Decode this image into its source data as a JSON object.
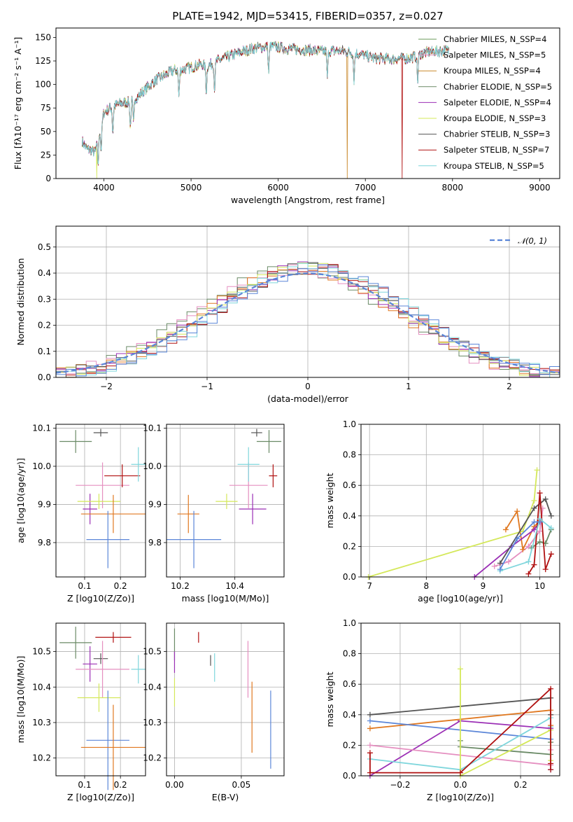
{
  "title": "PLATE=1942, MJD=53415, FIBERID=0357, z=0.027",
  "colors": [
    "#6a9a5a",
    "#e58fc0",
    "#c9882a",
    "#6a8a66",
    "#9b2fb5",
    "#d4e85a",
    "#555555",
    "#b01010",
    "#7fd6dc"
  ],
  "chart_data": [
    {
      "type": "line",
      "id": "spectrum",
      "xlabel": "wavelength [Angstrom, rest frame]",
      "ylabel": "Flux [fλ10⁻¹⁷ erg cm⁻² s⁻¹ A⁻¹]",
      "xlim": [
        3450,
        9230
      ],
      "ylim": [
        0,
        160
      ],
      "xticks": [
        4000,
        5000,
        6000,
        7000,
        8000,
        9000
      ],
      "yticks": [
        0,
        25,
        50,
        75,
        100,
        125,
        150
      ],
      "legend_loc": "upper right",
      "series_labels": [
        "Chabrier MILES, N_SSP=4",
        "Salpeter MILES, N_SSP=5",
        "Kroupa MILES, N_SSP=4",
        "Chabrier ELODIE, N_SSP=5",
        "Salpeter ELODIE, N_SSP=4",
        "Kroupa ELODIE, N_SSP=3",
        "Chabrier STELIB, N_SSP=3",
        "Salpeter STELIB, N_SSP=7",
        "Kroupa STELIB, N_SSP=5"
      ],
      "continuum_x": [
        3750,
        3800,
        3850,
        3900,
        3950,
        4000,
        4100,
        4200,
        4300,
        4400,
        4500,
        4600,
        4700,
        4800,
        4900,
        5000,
        5100,
        5200,
        5300,
        5500,
        5700,
        5900,
        6100,
        6300,
        6500,
        6700,
        6900,
        7100,
        7300,
        7500,
        7700,
        7900
      ],
      "continuum_y": [
        40,
        32,
        30,
        28,
        50,
        70,
        77,
        80,
        82,
        88,
        97,
        105,
        110,
        115,
        116,
        118,
        121,
        120,
        125,
        132,
        138,
        141,
        138,
        137,
        135,
        136,
        133,
        128,
        127,
        128,
        134,
        136
      ],
      "absorption_x": [
        3934,
        3969,
        4102,
        4304,
        4340,
        4861,
        5175,
        5270,
        5890,
        6563,
        6870,
        7600
      ],
      "dropout_series": [
        {
          "series": 5,
          "x": 3920
        },
        {
          "series": 2,
          "x": 6790
        },
        {
          "series": 7,
          "x": 7420
        }
      ]
    },
    {
      "type": "line",
      "id": "residuals",
      "xlabel": "(data-model)/error",
      "ylabel": "Normed distribution",
      "xlim": [
        -2.5,
        2.5
      ],
      "ylim": [
        0,
        0.58
      ],
      "xticks": [
        -2,
        -1,
        0,
        1,
        2
      ],
      "yticks": [
        0.0,
        0.1,
        0.2,
        0.3,
        0.4,
        0.5
      ],
      "reference_label": "𝒩(0, 1)",
      "reference_color": "#5b86d8",
      "hist_series_colors": [
        "#6a8a66",
        "#e58fc0",
        "#e07820",
        "#9b2fb5",
        "#d4e85a",
        "#555555",
        "#b01010",
        "#7fd6dc",
        "#5b86d8"
      ],
      "bin_width": 0.1
    },
    {
      "type": "scatter",
      "id": "age-vs-Z",
      "xlabel": "Z [log10(Z/Zo)]",
      "ylabel": "age  [log10(age/yr)]",
      "xlim": [
        0.02,
        0.27
      ],
      "ylim": [
        9.71,
        10.11
      ],
      "xticks": [
        0.1,
        0.2
      ],
      "yticks": [
        9.8,
        9.9,
        10.0,
        10.1
      ],
      "points": [
        {
          "x": 0.075,
          "y": 10.065,
          "xerr": 0.045,
          "yerr": 0.03,
          "c": "#6a8a66"
        },
        {
          "x": 0.145,
          "y": 10.088,
          "xerr": 0.02,
          "yerr": 0.01,
          "c": "#555555"
        },
        {
          "x": 0.15,
          "y": 9.95,
          "xerr": 0.075,
          "yerr": 0.06,
          "c": "#e58fc0"
        },
        {
          "x": 0.205,
          "y": 9.975,
          "xerr": 0.05,
          "yerr": 0.03,
          "c": "#b01010"
        },
        {
          "x": 0.25,
          "y": 10.005,
          "xerr": 0.02,
          "yerr": 0.045,
          "c": "#7fd6dc"
        },
        {
          "x": 0.115,
          "y": 9.888,
          "xerr": 0.02,
          "yerr": 0.04,
          "c": "#9b2fb5"
        },
        {
          "x": 0.14,
          "y": 9.908,
          "xerr": 0.06,
          "yerr": 0.02,
          "c": "#d4e85a"
        },
        {
          "x": 0.18,
          "y": 9.875,
          "xerr": 0.09,
          "yerr": 0.05,
          "c": "#e07820"
        },
        {
          "x": 0.165,
          "y": 9.808,
          "xerr": 0.06,
          "yerr": 0.075,
          "c": "#5b86d8"
        }
      ]
    },
    {
      "type": "scatter",
      "id": "age-vs-mass",
      "xlabel": "mass [log10(M/Mo)]",
      "ylabel": "",
      "xlim": [
        10.15,
        10.58
      ],
      "ylim": [
        9.71,
        10.11
      ],
      "xticks": [
        10.2,
        10.4
      ],
      "yticks": [
        9.8,
        9.9,
        10.0,
        10.1
      ],
      "points": [
        {
          "x": 10.525,
          "y": 10.065,
          "xerr": 0.045,
          "yerr": 0.03,
          "c": "#6a8a66"
        },
        {
          "x": 10.48,
          "y": 10.088,
          "xerr": 0.02,
          "yerr": 0.01,
          "c": "#555555"
        },
        {
          "x": 10.45,
          "y": 9.95,
          "xerr": 0.07,
          "yerr": 0.06,
          "c": "#e58fc0"
        },
        {
          "x": 10.54,
          "y": 9.975,
          "xerr": 0.015,
          "yerr": 0.03,
          "c": "#b01010"
        },
        {
          "x": 10.45,
          "y": 10.005,
          "xerr": 0.04,
          "yerr": 0.045,
          "c": "#7fd6dc"
        },
        {
          "x": 10.465,
          "y": 9.888,
          "xerr": 0.05,
          "yerr": 0.04,
          "c": "#9b2fb5"
        },
        {
          "x": 10.37,
          "y": 9.908,
          "xerr": 0.04,
          "yerr": 0.02,
          "c": "#d4e85a"
        },
        {
          "x": 10.23,
          "y": 9.875,
          "xerr": 0.04,
          "yerr": 0.05,
          "c": "#e07820"
        },
        {
          "x": 10.25,
          "y": 9.808,
          "xerr": 0.1,
          "yerr": 0.075,
          "c": "#5b86d8"
        }
      ]
    },
    {
      "type": "line",
      "id": "weight-vs-age",
      "xlabel": "age  [log10(age/yr)]",
      "ylabel": "mass weight",
      "xlim": [
        6.85,
        10.35
      ],
      "ylim": [
        0,
        1.0
      ],
      "xticks": [
        7,
        8,
        9,
        10
      ],
      "yticks": [
        0.0,
        0.2,
        0.4,
        0.6,
        0.8,
        1.0
      ],
      "series": [
        {
          "c": "#6a8a66",
          "x": [
            9.85,
            10.0,
            10.1,
            10.2
          ],
          "y": [
            0.19,
            0.23,
            0.22,
            0.31
          ]
        },
        {
          "c": "#e58fc0",
          "x": [
            9.2,
            9.45,
            9.8,
            10.0,
            10.05
          ],
          "y": [
            0.07,
            0.1,
            0.2,
            0.3,
            0.45
          ]
        },
        {
          "c": "#e07820",
          "x": [
            9.4,
            9.6,
            9.7,
            9.9,
            10.0
          ],
          "y": [
            0.31,
            0.43,
            0.18,
            0.33,
            0.37
          ]
        },
        {
          "c": "#9b2fb5",
          "x": [
            8.85,
            9.5,
            9.9,
            10.0
          ],
          "y": [
            0.0,
            0.2,
            0.31,
            0.36
          ]
        },
        {
          "c": "#d4e85a",
          "x": [
            6.98,
            9.7,
            9.9,
            9.95
          ],
          "y": [
            0.0,
            0.3,
            0.5,
            0.7
          ]
        },
        {
          "c": "#555555",
          "x": [
            9.3,
            9.9,
            10.1,
            10.2
          ],
          "y": [
            0.09,
            0.45,
            0.51,
            0.4
          ]
        },
        {
          "c": "#b01010",
          "x": [
            9.8,
            9.9,
            10.0,
            10.1,
            10.2
          ],
          "y": [
            0.02,
            0.08,
            0.55,
            0.05,
            0.15
          ]
        },
        {
          "c": "#7fd6dc",
          "x": [
            9.3,
            9.8,
            10.0,
            10.2
          ],
          "y": [
            0.04,
            0.1,
            0.38,
            0.32
          ]
        },
        {
          "c": "#5b86d8",
          "x": [
            9.3,
            9.6,
            9.9,
            10.0
          ],
          "y": [
            0.05,
            0.25,
            0.36,
            0.36
          ]
        }
      ]
    },
    {
      "type": "scatter",
      "id": "mass-vs-Z",
      "xlabel": "Z [log10(Z/Zo)]",
      "ylabel": "mass [log10(M/Mo)]",
      "xlim": [
        0.02,
        0.27
      ],
      "ylim": [
        10.15,
        10.58
      ],
      "xticks": [
        0.1,
        0.2
      ],
      "yticks": [
        10.2,
        10.3,
        10.4,
        10.5
      ],
      "points": [
        {
          "x": 0.075,
          "y": 10.525,
          "xerr": 0.045,
          "yerr": 0.045,
          "c": "#6a8a66"
        },
        {
          "x": 0.145,
          "y": 10.48,
          "xerr": 0.02,
          "yerr": 0.015,
          "c": "#555555"
        },
        {
          "x": 0.18,
          "y": 10.54,
          "xerr": 0.05,
          "yerr": 0.015,
          "c": "#b01010"
        },
        {
          "x": 0.115,
          "y": 10.465,
          "xerr": 0.02,
          "yerr": 0.05,
          "c": "#9b2fb5"
        },
        {
          "x": 0.15,
          "y": 10.45,
          "xerr": 0.075,
          "yerr": 0.08,
          "c": "#e58fc0"
        },
        {
          "x": 0.25,
          "y": 10.45,
          "xerr": 0.02,
          "yerr": 0.04,
          "c": "#7fd6dc"
        },
        {
          "x": 0.14,
          "y": 10.37,
          "xerr": 0.06,
          "yerr": 0.04,
          "c": "#d4e85a"
        },
        {
          "x": 0.165,
          "y": 10.25,
          "xerr": 0.06,
          "yerr": 0.14,
          "c": "#5b86d8"
        },
        {
          "x": 0.18,
          "y": 10.23,
          "xerr": 0.09,
          "yerr": 0.12,
          "c": "#e07820"
        }
      ]
    },
    {
      "type": "scatter",
      "id": "mass-vs-EBV",
      "xlabel": "E(B-V)",
      "ylabel": "",
      "xlim": [
        -0.006,
        0.082
      ],
      "ylim": [
        10.15,
        10.58
      ],
      "xticks": [
        0.0,
        0.05
      ],
      "yticks": [
        10.2,
        10.3,
        10.4,
        10.5
      ],
      "points": [
        {
          "x": 0.0,
          "y": 10.52,
          "yerr": 0.045,
          "c": "#6a8a66"
        },
        {
          "x": 0.0,
          "y": 10.47,
          "yerr": 0.03,
          "c": "#9b2fb5"
        },
        {
          "x": 0.0,
          "y": 10.385,
          "yerr": 0.04,
          "c": "#d4e85a"
        },
        {
          "x": 0.018,
          "y": 10.54,
          "yerr": 0.015,
          "c": "#b01010"
        },
        {
          "x": 0.027,
          "y": 10.475,
          "yerr": 0.015,
          "c": "#555555"
        },
        {
          "x": 0.03,
          "y": 10.455,
          "yerr": 0.04,
          "c": "#7fd6dc"
        },
        {
          "x": 0.055,
          "y": 10.45,
          "yerr": 0.08,
          "c": "#e58fc0"
        },
        {
          "x": 0.058,
          "y": 10.315,
          "yerr": 0.1,
          "c": "#e07820"
        },
        {
          "x": 0.072,
          "y": 10.28,
          "yerr": 0.11,
          "c": "#5b86d8"
        }
      ]
    },
    {
      "type": "line",
      "id": "weight-vs-Z",
      "xlabel": "Z [log10(Z/Zo)]",
      "ylabel": "mass weight",
      "xlim": [
        -0.33,
        0.33
      ],
      "ylim": [
        0,
        1.0
      ],
      "xticks": [
        -0.2,
        0.0,
        0.2
      ],
      "yticks": [
        0.0,
        0.2,
        0.4,
        0.6,
        0.8,
        1.0
      ],
      "series": [
        {
          "c": "#555555",
          "x": [
            -0.3,
            0.3,
            0.3
          ],
          "y": [
            0.4,
            0.51,
            0.4
          ]
        },
        {
          "c": "#e07820",
          "x": [
            -0.3,
            0.3,
            0.3
          ],
          "y": [
            0.31,
            0.43,
            0.33
          ]
        },
        {
          "c": "#5b86d8",
          "x": [
            -0.3,
            0.3,
            0.3
          ],
          "y": [
            0.36,
            0.24,
            0.04
          ]
        },
        {
          "c": "#9b2fb5",
          "x": [
            -0.3,
            0.0,
            0.3
          ],
          "y": [
            0.0,
            0.36,
            0.31
          ]
        },
        {
          "c": "#6a8a66",
          "x": [
            0.0,
            0.0,
            0.3,
            0.3
          ],
          "y": [
            0.23,
            0.19,
            0.14,
            0.22
          ]
        },
        {
          "c": "#e58fc0",
          "x": [
            -0.3,
            0.3,
            0.3
          ],
          "y": [
            0.2,
            0.07,
            0.17
          ]
        },
        {
          "c": "#7fd6dc",
          "x": [
            -0.3,
            0.0,
            0.3,
            0.3
          ],
          "y": [
            0.11,
            0.04,
            0.38,
            0.32
          ]
        },
        {
          "c": "#d4e85a",
          "x": [
            0.0,
            0.0,
            0.3,
            0.3
          ],
          "y": [
            0.7,
            0.0,
            0.3,
            0.1
          ]
        },
        {
          "c": "#b01010",
          "x": [
            -0.3,
            -0.3,
            0.0,
            0.3,
            0.3,
            0.3
          ],
          "y": [
            0.15,
            0.02,
            0.02,
            0.57,
            0.08,
            0.04
          ]
        }
      ]
    }
  ]
}
